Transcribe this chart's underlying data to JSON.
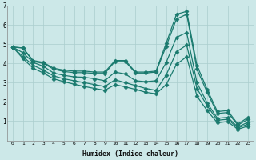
{
  "xlabel": "Humidex (Indice chaleur)",
  "ylabel": "",
  "bg_color": "#cce8e8",
  "grid_color": "#aacece",
  "line_color": "#1a7a6e",
  "xlim": [
    -0.5,
    23.5
  ],
  "ylim": [
    0,
    7
  ],
  "xticks": [
    0,
    1,
    2,
    3,
    4,
    5,
    6,
    7,
    8,
    9,
    10,
    11,
    12,
    13,
    14,
    15,
    16,
    17,
    18,
    19,
    20,
    21,
    22,
    23
  ],
  "yticks": [
    1,
    2,
    3,
    4,
    5,
    6,
    7
  ],
  "lines": [
    [
      4.85,
      4.8,
      4.15,
      4.05,
      3.75,
      3.65,
      3.6,
      3.6,
      3.55,
      3.55,
      4.15,
      4.15,
      3.55,
      3.55,
      3.6,
      5.05,
      6.55,
      6.7,
      3.9,
      2.65,
      1.5,
      1.55,
      0.85,
      1.2
    ],
    [
      4.85,
      4.8,
      4.1,
      4.0,
      3.7,
      3.58,
      3.52,
      3.52,
      3.48,
      3.48,
      4.1,
      4.1,
      3.5,
      3.5,
      3.55,
      4.9,
      6.3,
      6.55,
      3.7,
      2.5,
      1.4,
      1.45,
      0.8,
      1.1
    ],
    [
      4.85,
      4.55,
      4.05,
      3.85,
      3.5,
      3.38,
      3.3,
      3.28,
      3.2,
      3.1,
      3.55,
      3.45,
      3.1,
      3.05,
      3.1,
      4.05,
      5.35,
      5.6,
      3.0,
      1.95,
      1.15,
      1.2,
      0.7,
      0.95
    ],
    [
      4.85,
      4.35,
      3.9,
      3.65,
      3.35,
      3.2,
      3.1,
      3.0,
      2.9,
      2.8,
      3.15,
      3.0,
      2.85,
      2.7,
      2.6,
      3.4,
      4.6,
      4.95,
      2.7,
      1.8,
      1.05,
      1.1,
      0.65,
      0.85
    ],
    [
      4.85,
      4.25,
      3.75,
      3.5,
      3.2,
      3.05,
      2.92,
      2.8,
      2.7,
      2.6,
      2.9,
      2.78,
      2.65,
      2.5,
      2.42,
      2.9,
      3.95,
      4.35,
      2.3,
      1.55,
      0.92,
      0.98,
      0.58,
      0.75
    ]
  ],
  "marker": "D",
  "markersize": 2.5,
  "linewidth": 0.9
}
